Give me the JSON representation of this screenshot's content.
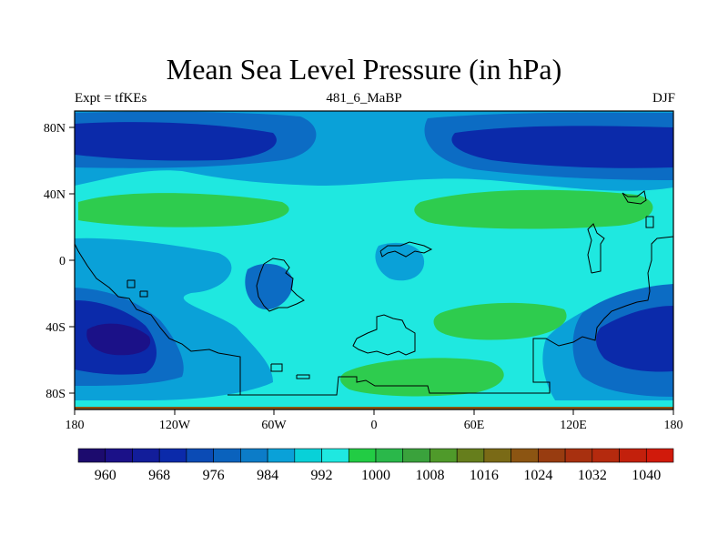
{
  "title": "Mean Sea Level Pressure (in hPa)",
  "subtitle_left": "Expt = tfKEs",
  "subtitle_center": "481_6_MaBP",
  "subtitle_right": "DJF",
  "longitude_ticks": [
    "180",
    "120W",
    "60W",
    "0",
    "60E",
    "120E",
    "180"
  ],
  "latitude_ticks": [
    "80N",
    "40N",
    "0",
    "40S",
    "80S"
  ],
  "colorbar": {
    "labels": [
      "960",
      "968",
      "976",
      "984",
      "992",
      "1000",
      "1008",
      "1016",
      "1024",
      "1032",
      "1040"
    ],
    "colors": [
      "#1c0b6e",
      "#1b1188",
      "#121d9a",
      "#0b2aaa",
      "#0b4bb5",
      "#0a62bd",
      "#0c7cc8",
      "#0aa1d8",
      "#08d1d8",
      "#1fe8e0",
      "#22cc44",
      "#2ab84a",
      "#3aa23c",
      "#4f9a2a",
      "#667e1c",
      "#7a6a16",
      "#8c5512",
      "#983c10",
      "#a8300f",
      "#b52a0e",
      "#c3200c",
      "#d11a0b"
    ]
  },
  "map_colors": {
    "deep": "#0b2aaa",
    "mid": "#0c6cc4",
    "light": "#0aa1d8",
    "cyan": "#1fe8e0",
    "green": "#2ecc4e"
  }
}
